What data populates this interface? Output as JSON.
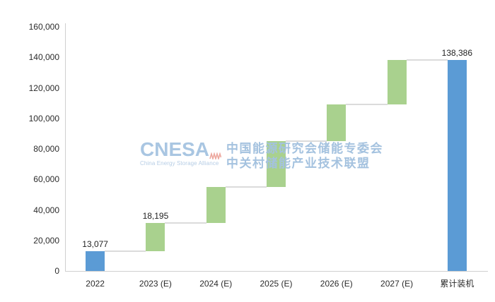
{
  "watermark": {
    "logo_text": "CNESA",
    "logo_tagline": "China Energy Storage Alliance",
    "org_line1": "中国能源研究会储能专委会",
    "org_line2": "中关村储能产业技术联盟"
  },
  "chart_data": {
    "type": "waterfall",
    "title": "",
    "xlabel": "",
    "ylabel": "",
    "ylim": [
      0,
      160000
    ],
    "grid": false,
    "legend": false,
    "y_ticks": [
      {
        "value": 0,
        "label": "0"
      },
      {
        "value": 20000,
        "label": "20,000"
      },
      {
        "value": 40000,
        "label": "40,000"
      },
      {
        "value": 60000,
        "label": "60,000"
      },
      {
        "value": 80000,
        "label": "80,000"
      },
      {
        "value": 100000,
        "label": "100,000"
      },
      {
        "value": 120000,
        "label": "120,000"
      },
      {
        "value": 140000,
        "label": "140,000"
      },
      {
        "value": 160000,
        "label": "160,000"
      }
    ],
    "categories": [
      "2022",
      "2023 (E)",
      "2024 (E)",
      "2025 (E)",
      "2026 (E)",
      "2027 (E)",
      "累计装机"
    ],
    "segments": [
      {
        "category": "2022",
        "start": 0,
        "end": 13077,
        "role": "total",
        "value_label": "13,077"
      },
      {
        "category": "2023 (E)",
        "start": 13077,
        "end": 31272,
        "role": "increment",
        "value_label": "18,195"
      },
      {
        "category": "2024 (E)",
        "start": 31272,
        "end": 55200,
        "role": "increment",
        "value_label": ""
      },
      {
        "category": "2025 (E)",
        "start": 55200,
        "end": 85100,
        "role": "increment",
        "value_label": ""
      },
      {
        "category": "2026 (E)",
        "start": 85100,
        "end": 109100,
        "role": "increment",
        "value_label": ""
      },
      {
        "category": "2027 (E)",
        "start": 109100,
        "end": 138386,
        "role": "increment",
        "value_label": ""
      },
      {
        "category": "累计装机",
        "start": 0,
        "end": 138386,
        "role": "total",
        "value_label": "138,386"
      }
    ],
    "colors": {
      "total": "#5b9bd5",
      "increment": "#a9d18e",
      "connector": "#dbdbdb",
      "axis": "#cfcfcf",
      "tick_text": "#2b2b2b",
      "label_text": "#1f1f1f",
      "watermark_blue": "#a9c6e2",
      "watermark_red": "#eda89f"
    }
  }
}
